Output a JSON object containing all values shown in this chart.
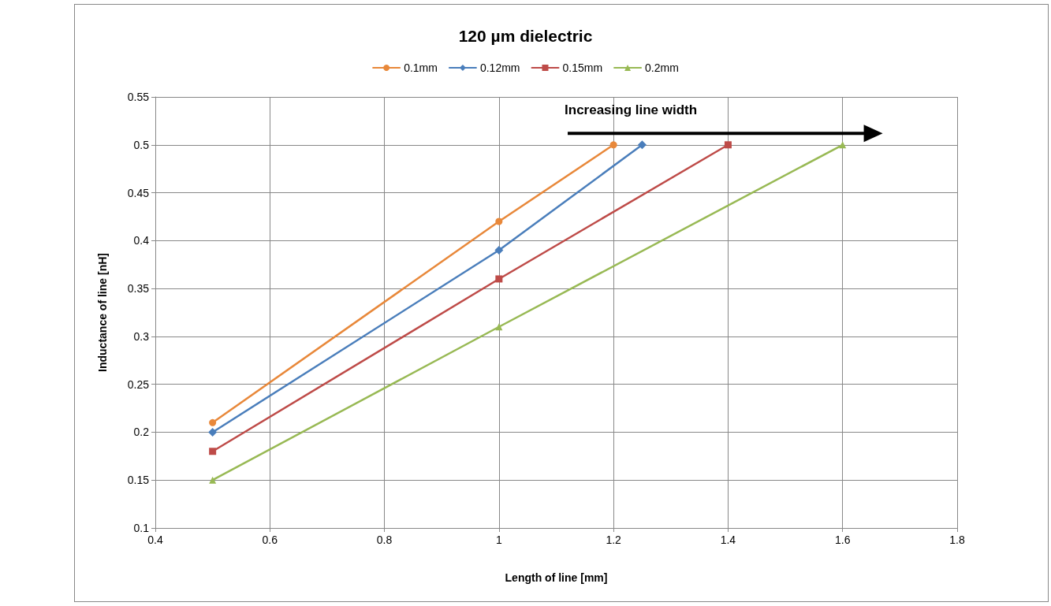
{
  "chart_data": {
    "type": "line",
    "title": "120 µm dielectric",
    "xlabel": "Length of line [mm]",
    "ylabel": "Inductance of line [nH]",
    "xlim": [
      0.4,
      1.8
    ],
    "xticks": [
      0.4,
      0.6,
      0.8,
      1,
      1.2,
      1.4,
      1.6,
      1.8
    ],
    "ylim": [
      0.1,
      0.55
    ],
    "yticks": [
      0.1,
      0.15,
      0.2,
      0.25,
      0.3,
      0.35,
      0.4,
      0.45,
      0.5,
      0.55
    ],
    "grid": true,
    "legend": "top",
    "annotations": [
      "Increasing line width"
    ],
    "series": [
      {
        "name": "0.1mm",
        "color": "#e8883a",
        "marker": "circle",
        "x": [
          0.5,
          1,
          1.2
        ],
        "values": [
          0.21,
          0.42,
          0.5
        ]
      },
      {
        "name": "0.12mm",
        "color": "#4a7ebb",
        "marker": "diamond",
        "x": [
          0.5,
          1,
          1.25
        ],
        "values": [
          0.2,
          0.39,
          0.5
        ]
      },
      {
        "name": "0.15mm",
        "color": "#be4b48",
        "marker": "square",
        "x": [
          0.5,
          1,
          1.4
        ],
        "values": [
          0.18,
          0.36,
          0.5
        ]
      },
      {
        "name": "0.2mm",
        "color": "#98b954",
        "marker": "triangle",
        "x": [
          0.5,
          1,
          1.6
        ],
        "values": [
          0.15,
          0.31,
          0.5
        ]
      }
    ]
  }
}
